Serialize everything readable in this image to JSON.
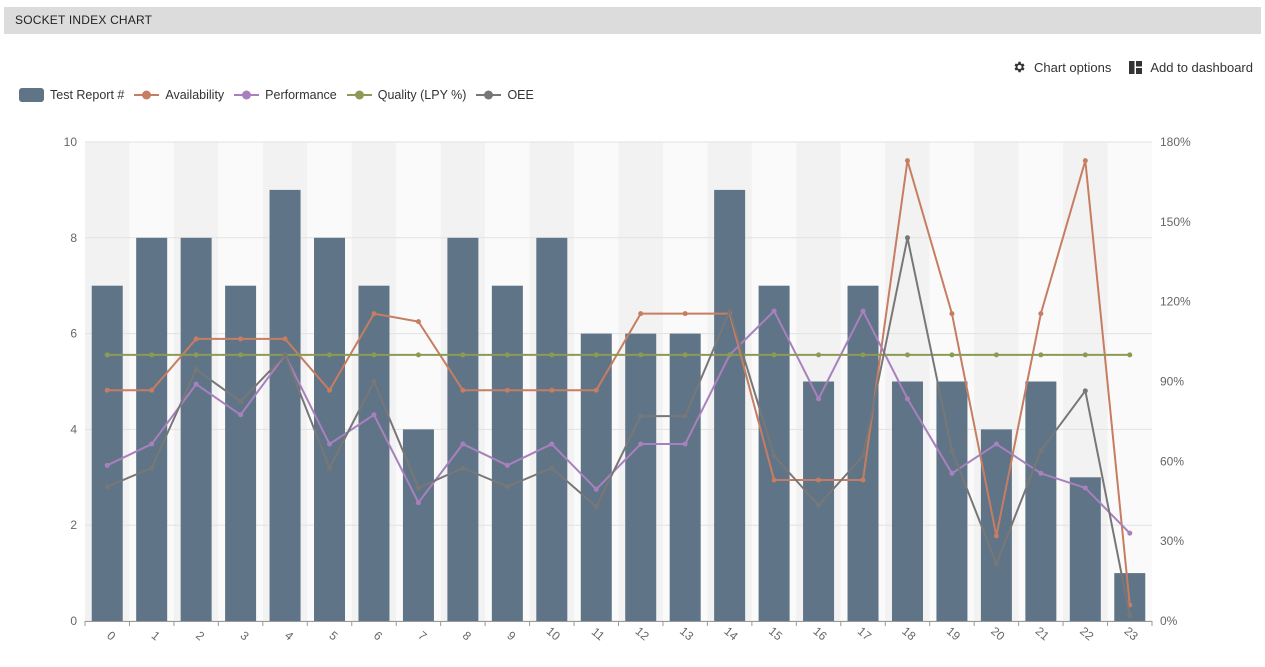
{
  "header": {
    "title": "SOCKET INDEX CHART"
  },
  "toolbar": {
    "chart_options_label": "Chart options",
    "add_dashboard_label": "Add to dashboard"
  },
  "icons": {
    "chart_options": "gear-icon",
    "add_dashboard": "dashboard-icon"
  },
  "chart_data": {
    "type": "bar",
    "categories": [
      "0",
      "1",
      "2",
      "3",
      "4",
      "5",
      "6",
      "7",
      "8",
      "9",
      "10",
      "11",
      "12",
      "13",
      "14",
      "15",
      "16",
      "17",
      "18",
      "19",
      "20",
      "21",
      "22",
      "23"
    ],
    "y_left": {
      "min": 0,
      "max": 10,
      "ticks": [
        "0",
        "2",
        "4",
        "6",
        "8",
        "10"
      ]
    },
    "y_right": {
      "min": 0,
      "max": 180,
      "ticks": [
        "0%",
        "30%",
        "60%",
        "90%",
        "120%",
        "150%",
        "180%"
      ]
    },
    "legend_position": "top-left",
    "series": [
      {
        "name": "Test Report #",
        "type": "bar",
        "axis": "left",
        "color": "#5f7487",
        "values": [
          7,
          8,
          8,
          7,
          9,
          8,
          7,
          4,
          8,
          7,
          8,
          6,
          6,
          6,
          9,
          7,
          5,
          7,
          5,
          5,
          4,
          5,
          3,
          1
        ]
      },
      {
        "name": "Availability",
        "type": "line",
        "axis": "right",
        "color": "#c67d62",
        "values": [
          86.7,
          86.7,
          106,
          106,
          106,
          86.7,
          115.5,
          112.5,
          86.7,
          86.7,
          86.7,
          86.7,
          115.5,
          115.5,
          115.5,
          53,
          53,
          53,
          173,
          115.5,
          32,
          115.5,
          173,
          6
        ]
      },
      {
        "name": "Performance",
        "type": "line",
        "axis": "right",
        "color": "#a880bd",
        "values": [
          58.5,
          66.5,
          89,
          77.5,
          100,
          66.5,
          77.5,
          44.5,
          66.5,
          58.5,
          66.5,
          49.5,
          66.5,
          66.5,
          100,
          116.5,
          83.5,
          116.5,
          83.5,
          55.5,
          66.5,
          55.5,
          50,
          33
        ]
      },
      {
        "name": "Quality (LPY %)",
        "type": "line",
        "axis": "right",
        "color": "#8d9a55",
        "values": [
          100,
          100,
          100,
          100,
          100,
          100,
          100,
          100,
          100,
          100,
          100,
          100,
          100,
          100,
          100,
          100,
          100,
          100,
          100,
          100,
          100,
          100,
          100,
          100
        ]
      },
      {
        "name": "OEE",
        "type": "line",
        "axis": "right",
        "color": "#777777",
        "values": [
          50.5,
          57.5,
          94.5,
          82.5,
          100,
          57.5,
          90,
          50,
          57.5,
          50.5,
          57.5,
          43,
          77,
          77,
          116.5,
          62,
          43.5,
          62,
          144,
          64,
          21.5,
          64,
          86.5,
          2
        ]
      }
    ]
  }
}
